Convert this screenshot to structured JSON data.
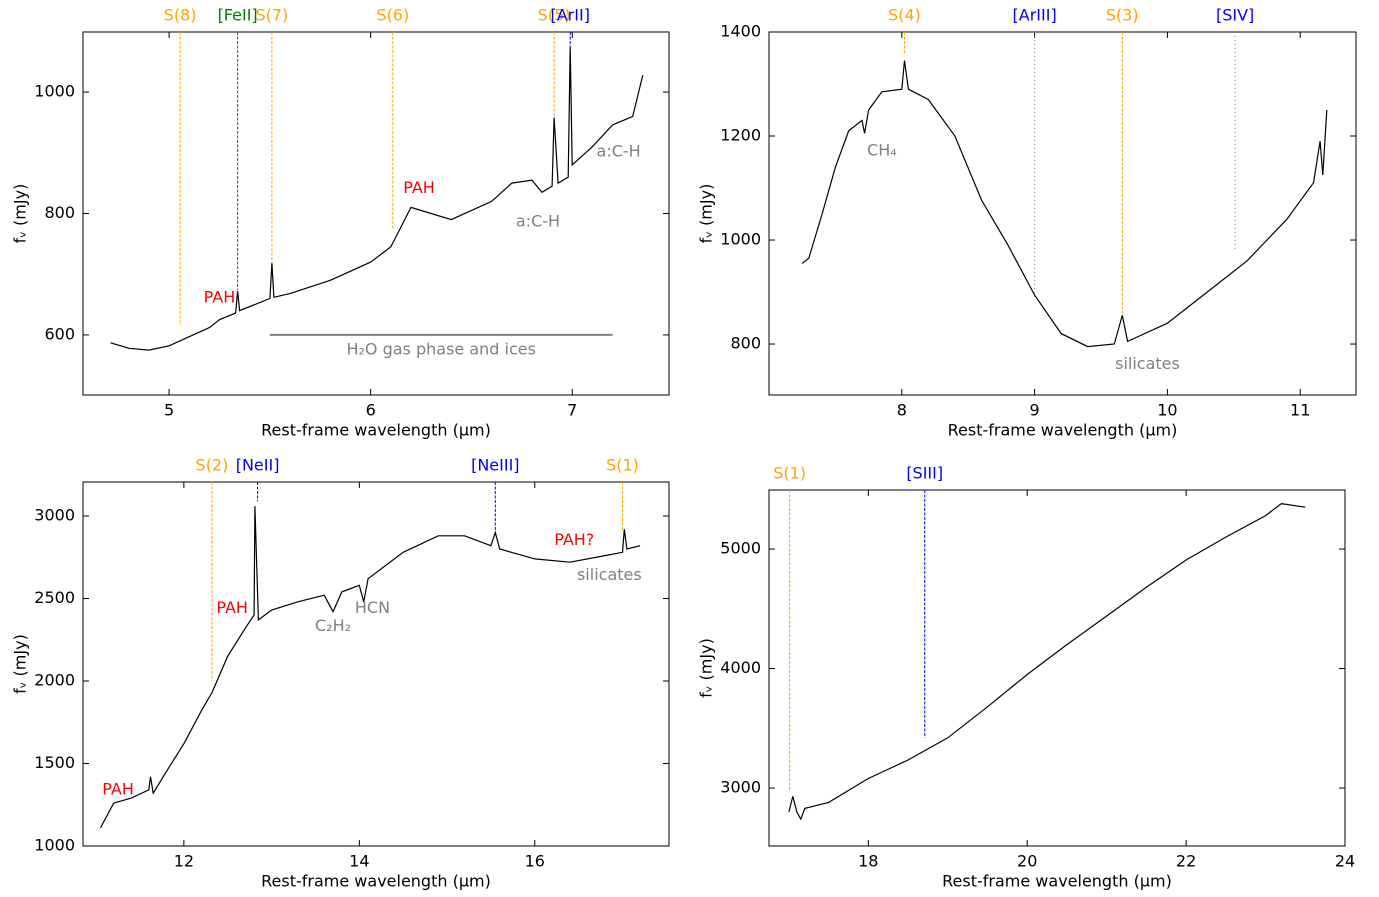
{
  "chart_data": [
    {
      "type": "line",
      "xlabel": "Rest-frame wavelength (μm)",
      "ylabel": "fᵥ (mJy)",
      "xlim": [
        4.573,
        7.48
      ],
      "ylim": [
        501,
        1099
      ],
      "xticks": [
        5,
        6,
        7
      ],
      "yticks": [
        600,
        800,
        1000
      ],
      "x": [
        4.71,
        4.8,
        4.9,
        5.0,
        5.1,
        5.2,
        5.25,
        5.33,
        5.34,
        5.35,
        5.5,
        5.51,
        5.52,
        5.6,
        5.8,
        6.0,
        6.1,
        6.2,
        6.3,
        6.4,
        6.6,
        6.7,
        6.8,
        6.85,
        6.9,
        6.91,
        6.93,
        6.98,
        6.99,
        7.0,
        7.1,
        7.2,
        7.3,
        7.35
      ],
      "series": [
        {
          "color": "#000000",
          "values": [
            587,
            578,
            575,
            582,
            597,
            612,
            625,
            636,
            672,
            640,
            660,
            718,
            662,
            668,
            690,
            720,
            745,
            810,
            800,
            790,
            820,
            850,
            855,
            835,
            845,
            958,
            850,
            860,
            1075,
            880,
            910,
            946,
            960,
            1028
          ]
        }
      ],
      "lines": [
        {
          "label": "S(8)",
          "x": 5.055,
          "y_end": 616,
          "color": "#ffa500",
          "style": "dashed"
        },
        {
          "label": "[FeII]",
          "x": 5.34,
          "y_end": 674,
          "color": "green",
          "style": "dashed"
        },
        {
          "label": "S(7)",
          "x": 5.51,
          "y_end": 715,
          "color": "#ffa500",
          "style": "dashed"
        },
        {
          "label": "S(6)",
          "x": 6.11,
          "y_end": 775,
          "color": "#ffa500",
          "style": "dashed"
        },
        {
          "label": "S(5)",
          "x": 6.91,
          "y_end": 954,
          "color": "#ffa500",
          "style": "dashed"
        },
        {
          "label": "[ArII]",
          "x": 6.99,
          "y_end": 1075,
          "color": "blue",
          "style": "dashed"
        }
      ],
      "segments": [
        {
          "label": "H₂O gas phase and ices",
          "x": [
            5.5,
            7.2
          ],
          "y": 600,
          "label_y": 575,
          "color": "gray"
        }
      ],
      "annotations": [
        {
          "text": "PAH",
          "x": 5.25,
          "y": 661,
          "color": "red"
        },
        {
          "text": "PAH",
          "x": 6.24,
          "y": 841,
          "color": "red"
        },
        {
          "text": "a:C-H",
          "x": 6.83,
          "y": 786,
          "color": "gray"
        },
        {
          "text": "a:C-H",
          "x": 7.23,
          "y": 901,
          "color": "gray"
        }
      ]
    },
    {
      "type": "line",
      "xlabel": "Rest-frame wavelength (μm)",
      "ylabel": "fᵥ (mJy)",
      "xlim": [
        7.0,
        11.42
      ],
      "ylim": [
        702,
        1400
      ],
      "xticks": [
        8,
        9,
        10,
        11
      ],
      "yticks": [
        800,
        1000,
        1200,
        1400
      ],
      "x": [
        7.25,
        7.3,
        7.4,
        7.5,
        7.6,
        7.7,
        7.72,
        7.75,
        7.85,
        8.0,
        8.02,
        8.05,
        8.2,
        8.4,
        8.6,
        8.8,
        9.0,
        9.2,
        9.4,
        9.6,
        9.66,
        9.7,
        10.0,
        10.3,
        10.6,
        10.9,
        11.1,
        11.15,
        11.17,
        11.2
      ],
      "series": [
        {
          "color": "#000000",
          "values": [
            955,
            965,
            1050,
            1140,
            1210,
            1230,
            1205,
            1250,
            1285,
            1290,
            1345,
            1290,
            1270,
            1200,
            1077,
            990,
            894,
            820,
            795,
            800,
            855,
            805,
            840,
            900,
            960,
            1040,
            1110,
            1190,
            1125,
            1250
          ]
        }
      ],
      "lines": [
        {
          "label": "S(4)",
          "x": 8.02,
          "y_end": 1356,
          "color": "#ffa500",
          "label_color": "#ffa500",
          "style": "dashed"
        },
        {
          "label": "[ArIII]",
          "x": 9.0,
          "y_end": 885,
          "color": "gray",
          "label_color": "blue",
          "style": "dotted"
        },
        {
          "label": "S(3)",
          "x": 9.66,
          "y_end": 856,
          "color": "#ffa500",
          "label_color": "#ffa500",
          "style": "dashed"
        },
        {
          "label": "[SIV]",
          "x": 10.51,
          "y_end": 981,
          "color": "gray",
          "label_color": "blue",
          "style": "dotted"
        }
      ],
      "annotations": [
        {
          "text": "CH₄",
          "x": 7.85,
          "y": 1171,
          "color": "gray"
        },
        {
          "text": "silicates",
          "x": 9.85,
          "y": 761,
          "color": "gray"
        }
      ]
    },
    {
      "type": "line",
      "xlabel": "Rest-frame wavelength (μm)",
      "ylabel": "fᵥ (mJy)",
      "xlim": [
        10.85,
        17.53
      ],
      "ylim": [
        1000,
        3206
      ],
      "xticks": [
        12,
        14,
        16
      ],
      "yticks": [
        1000,
        1500,
        2000,
        2500,
        3000
      ],
      "x": [
        11.05,
        11.2,
        11.4,
        11.6,
        11.62,
        11.65,
        11.8,
        12.0,
        12.2,
        12.32,
        12.5,
        12.7,
        12.8,
        12.81,
        12.85,
        13.0,
        13.3,
        13.6,
        13.7,
        13.8,
        14.0,
        14.05,
        14.1,
        14.5,
        14.9,
        15.2,
        15.5,
        15.55,
        15.6,
        16.0,
        16.4,
        16.8,
        17.0,
        17.02,
        17.05,
        17.2
      ],
      "series": [
        {
          "color": "#000000",
          "values": [
            1110,
            1260,
            1290,
            1340,
            1420,
            1320,
            1450,
            1620,
            1820,
            1930,
            2150,
            2320,
            2400,
            3060,
            2370,
            2430,
            2480,
            2520,
            2420,
            2540,
            2580,
            2480,
            2620,
            2780,
            2880,
            2880,
            2820,
            2900,
            2800,
            2740,
            2720,
            2760,
            2780,
            2920,
            2800,
            2820
          ]
        }
      ],
      "lines": [
        {
          "label": "S(2)",
          "x": 12.32,
          "y_end": 2005,
          "color": "#ffa500",
          "style": "dashed"
        },
        {
          "label": "[NeII]",
          "x": 12.84,
          "y_end": 3090,
          "color": "blue",
          "style": "dashed"
        },
        {
          "label": "[NeIII]",
          "x": 15.55,
          "y_end": 2915,
          "color": "blue",
          "style": "dashed"
        },
        {
          "label": "S(1)",
          "x": 17.0,
          "y_end": 2915,
          "color": "#ffa500",
          "style": "dashed"
        }
      ],
      "annotations": [
        {
          "text": "PAH",
          "x": 11.25,
          "y": 1340,
          "color": "red"
        },
        {
          "text": "PAH",
          "x": 12.55,
          "y": 2440,
          "color": "red"
        },
        {
          "text": "C₂H₂",
          "x": 13.7,
          "y": 2330,
          "color": "gray"
        },
        {
          "text": "HCN",
          "x": 14.15,
          "y": 2440,
          "color": "gray"
        },
        {
          "text": "PAH?",
          "x": 16.45,
          "y": 2850,
          "color": "red"
        },
        {
          "text": "silicates",
          "x": 16.85,
          "y": 2640,
          "color": "gray"
        }
      ]
    },
    {
      "type": "line",
      "xlabel": "Rest-frame wavelength (μm)",
      "ylabel": "fᵥ (mJy)",
      "xlim": [
        16.75,
        24
      ],
      "ylim": [
        2515,
        5494
      ],
      "xticks": [
        18,
        20,
        22,
        24
      ],
      "yticks": [
        3000,
        4000,
        5000
      ],
      "x": [
        17.0,
        17.05,
        17.1,
        17.15,
        17.2,
        17.5,
        18.0,
        18.5,
        19.0,
        19.5,
        20.0,
        20.5,
        21.0,
        21.5,
        22.0,
        22.5,
        23.0,
        23.2,
        23.5
      ],
      "series": [
        {
          "color": "#000000",
          "values": [
            2800,
            2930,
            2800,
            2740,
            2830,
            2880,
            3080,
            3235,
            3420,
            3680,
            3950,
            4200,
            4440,
            4680,
            4908,
            5100,
            5280,
            5380,
            5350
          ]
        }
      ],
      "lines": [
        {
          "label": "S(1)",
          "x": 17.01,
          "y_end": 2983,
          "color": "#ffa500",
          "style": "dashed"
        },
        {
          "label": "[SIII]",
          "x": 18.71,
          "y_end": 3420,
          "color": "blue",
          "style": "dashed"
        }
      ],
      "annotations": []
    }
  ]
}
